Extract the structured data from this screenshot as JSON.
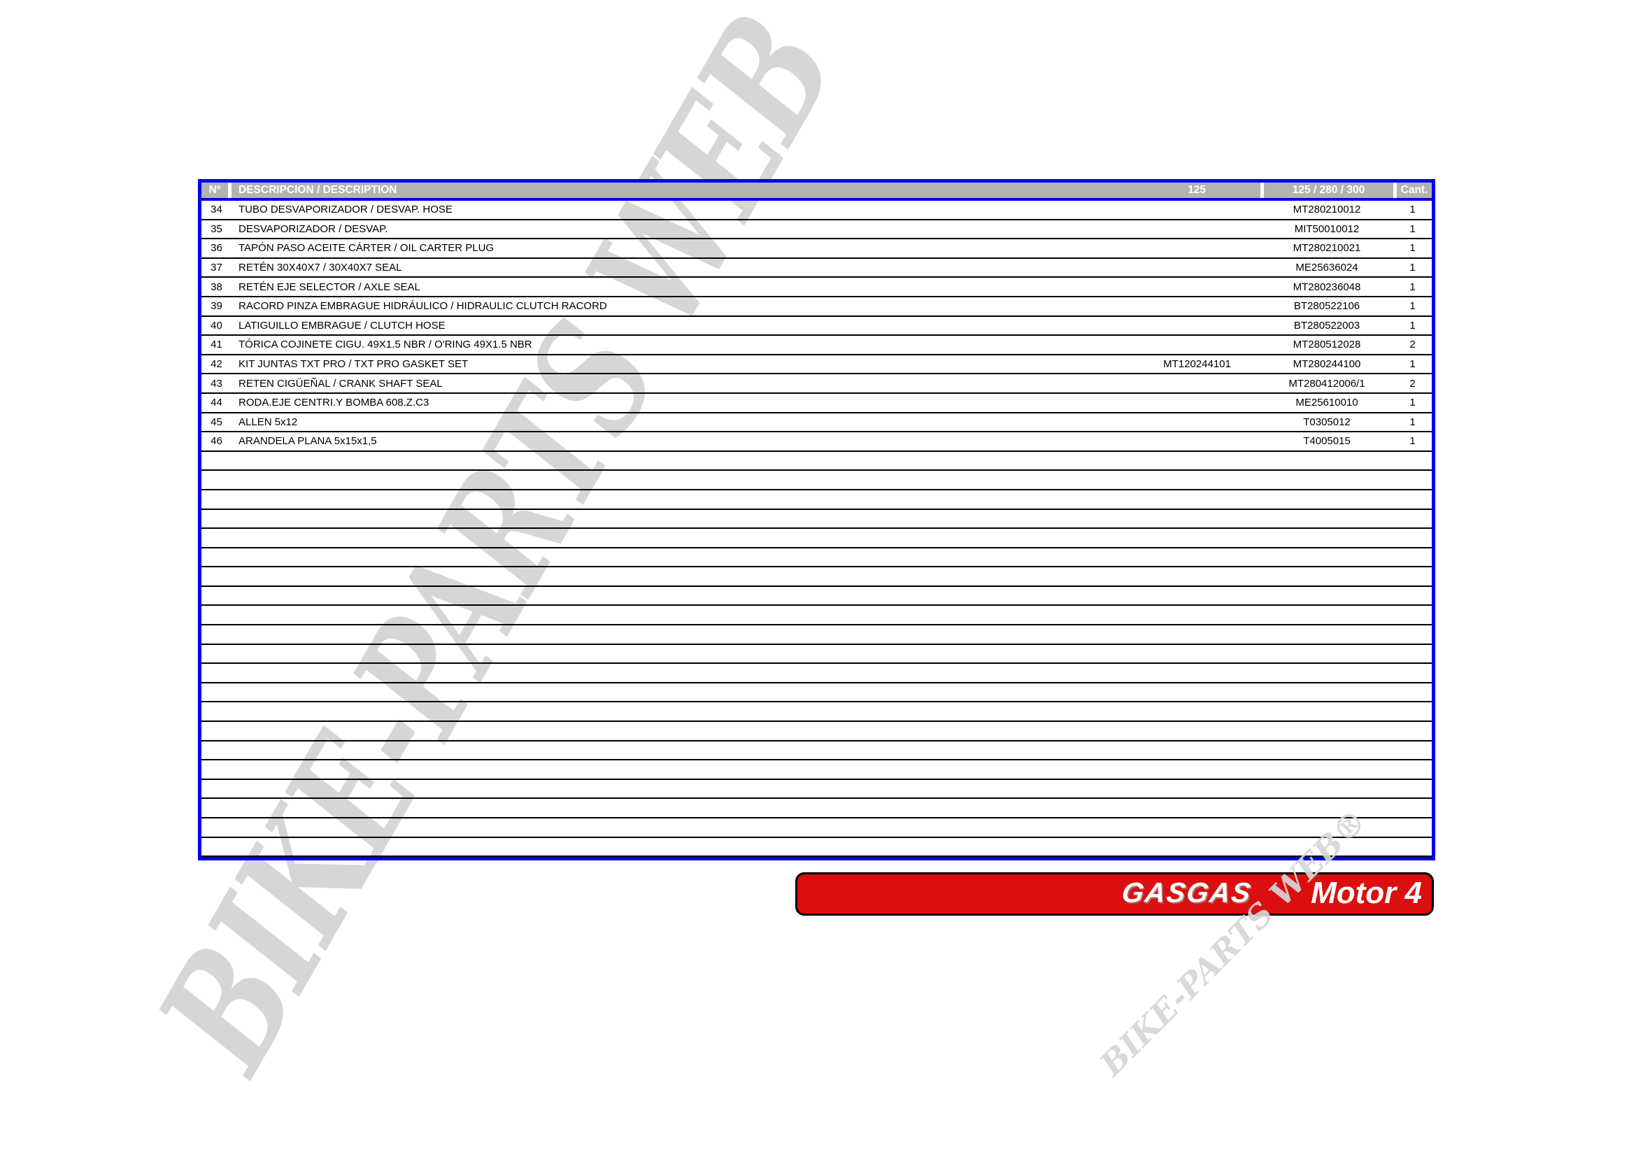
{
  "table": {
    "headers": {
      "num": "Nº",
      "desc": "DESCRIPCION / DESCRIPTION",
      "c125": "125",
      "c280": "125 / 280 / 300",
      "cant": "Cant."
    },
    "rows": [
      {
        "num": "34",
        "desc": "TUBO DESVAPORIZADOR / DESVAP. HOSE",
        "p125": "",
        "p280": "MT280210012",
        "cant": "1"
      },
      {
        "num": "35",
        "desc": "DESVAPORIZADOR / DESVAP.",
        "p125": "",
        "p280": "MIT50010012",
        "cant": "1"
      },
      {
        "num": "36",
        "desc": "TAPÓN PASO ACEITE CÁRTER / OIL CARTER PLUG",
        "p125": "",
        "p280": "MT280210021",
        "cant": "1"
      },
      {
        "num": "37",
        "desc": "RETÉN 30X40X7 / 30X40X7 SEAL",
        "p125": "",
        "p280": "ME25636024",
        "cant": "1"
      },
      {
        "num": "38",
        "desc": "RETÉN EJE SELECTOR / AXLE SEAL",
        "p125": "",
        "p280": "MT280236048",
        "cant": "1"
      },
      {
        "num": "39",
        "desc": "RACORD PINZA EMBRAGUE HIDRÁULICO / HIDRAULIC CLUTCH RACORD",
        "p125": "",
        "p280": "BT280522106",
        "cant": "1"
      },
      {
        "num": "40",
        "desc": "LATIGUILLO EMBRAGUE / CLUTCH HOSE",
        "p125": "",
        "p280": "BT280522003",
        "cant": "1"
      },
      {
        "num": "41",
        "desc": "TÓRICA COJINETE CIGU. 49X1.5 NBR / O'RING 49X1.5 NBR",
        "p125": "",
        "p280": "MT280512028",
        "cant": "2"
      },
      {
        "num": "42",
        "desc": "KIT JUNTAS TXT PRO / TXT PRO GASKET SET",
        "p125": "MT120244101",
        "p280": "MT280244100",
        "cant": "1"
      },
      {
        "num": "43",
        "desc": "RETEN CIGÜEÑAL / CRANK SHAFT SEAL",
        "p125": "",
        "p280": "MT280412006/1",
        "cant": "2"
      },
      {
        "num": "44",
        "desc": "RODA.EJE CENTRI.Y BOMBA 608.Z.C3",
        "p125": "",
        "p280": "ME25610010",
        "cant": "1"
      },
      {
        "num": "45",
        "desc": "ALLEN 5x12",
        "p125": "",
        "p280": "T0305012",
        "cant": "1"
      },
      {
        "num": "46",
        "desc": "ARANDELA PLANA 5x15x1,5",
        "p125": "",
        "p280": "T4005015",
        "cant": "1"
      }
    ],
    "empty_row_count": 21
  },
  "banner": {
    "brand": "GASGAS",
    "model": "Motor 4"
  },
  "watermark": {
    "large": "BIKE-PARTS WEB ©",
    "small": "BIKE-PARTS WEB®"
  },
  "colors": {
    "table_border": "#0000EE",
    "header_bg": "#b3b3b3",
    "banner_red": "#db0f0f",
    "watermark_gray": "#d6d6d6"
  }
}
